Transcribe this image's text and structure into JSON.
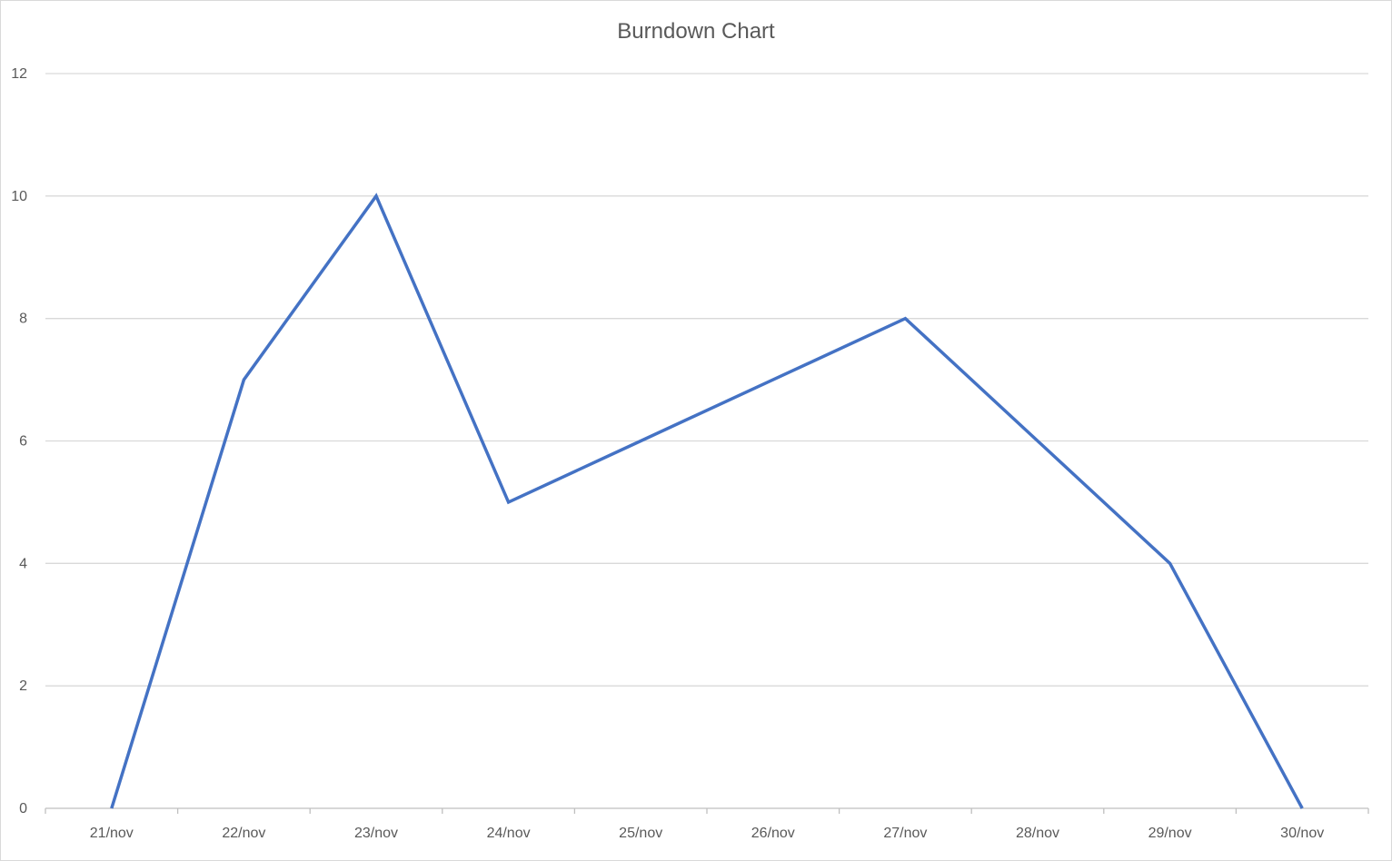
{
  "chart_data": {
    "type": "line",
    "title": "Burndown Chart",
    "xlabel": "",
    "ylabel": "",
    "categories": [
      "21/nov",
      "22/nov",
      "23/nov",
      "24/nov",
      "25/nov",
      "26/nov",
      "27/nov",
      "28/nov",
      "29/nov",
      "30/nov"
    ],
    "series": [
      {
        "values": [
          0,
          7,
          10,
          5,
          6,
          7,
          8,
          6,
          4,
          0
        ],
        "color": "#4472C4"
      }
    ],
    "ylim": [
      0,
      12
    ],
    "yticks": [
      "0",
      "2",
      "4",
      "6",
      "8",
      "10",
      "12"
    ],
    "grid": true,
    "legend": "none"
  },
  "colors": {
    "gridline": "#d9d9d9",
    "axis": "#bfbfbf",
    "text": "#595959"
  }
}
